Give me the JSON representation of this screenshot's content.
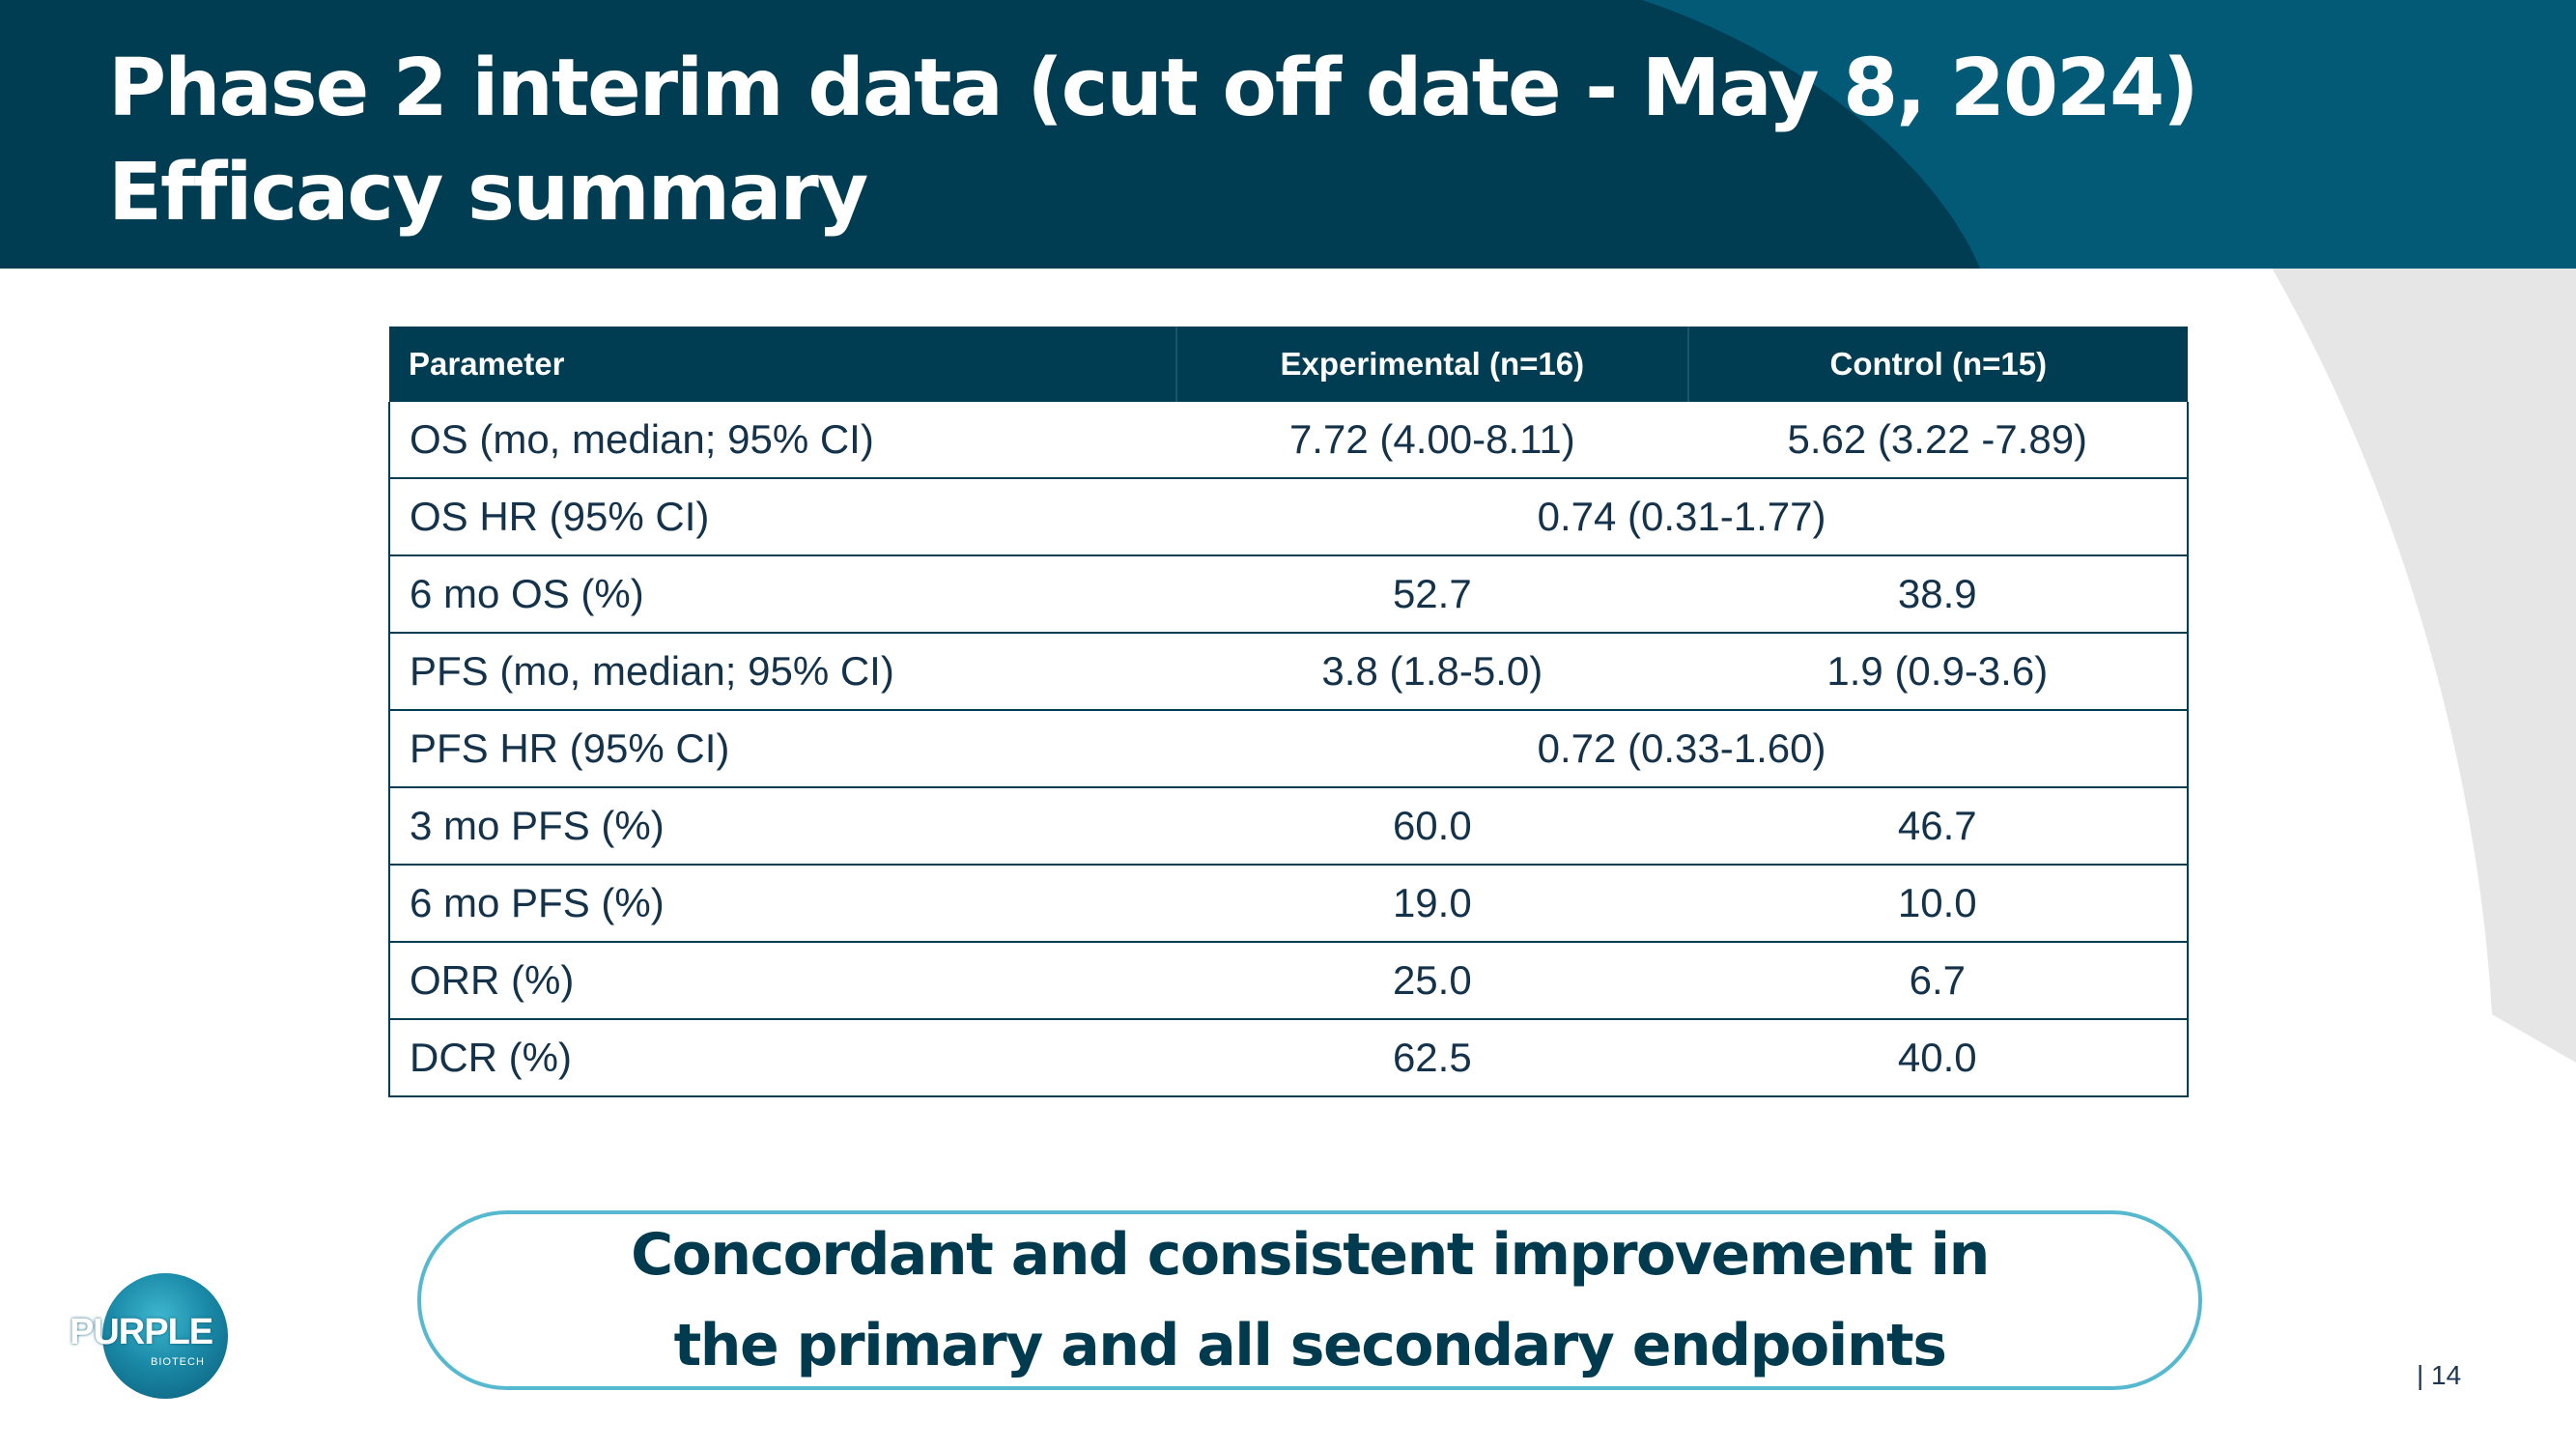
{
  "slide": {
    "title_line1": "Phase 2 interim data (cut off date - May 8, 2024)",
    "title_line2": "Efficacy summary",
    "page_number": "| 14"
  },
  "table": {
    "headers": [
      "Parameter",
      "Experimental (n=16)",
      "Control (n=15)"
    ],
    "rows": [
      {
        "parameter": "OS (mo, median; 95% CI)",
        "experimental": "7.72 (4.00-8.11)",
        "control": "5.62 (3.22 -7.89)"
      },
      {
        "parameter": "OS HR (95% CI)",
        "combined": "0.74 (0.31-1.77)"
      },
      {
        "parameter": "6 mo OS (%)",
        "experimental": "52.7",
        "control": "38.9"
      },
      {
        "parameter": "PFS (mo, median; 95% CI)",
        "experimental": "3.8 (1.8-5.0)",
        "control": "1.9 (0.9-3.6)"
      },
      {
        "parameter": "PFS HR (95% CI)",
        "combined": "0.72 (0.33-1.60)"
      },
      {
        "parameter": "3 mo PFS (%)",
        "experimental": "60.0",
        "control": "46.7"
      },
      {
        "parameter": "6 mo PFS (%)",
        "experimental": "19.0",
        "control": "10.0"
      },
      {
        "parameter": "ORR (%)",
        "experimental": "25.0",
        "control": "6.7"
      },
      {
        "parameter": "DCR (%)",
        "experimental": "62.5",
        "control": "40.0"
      }
    ]
  },
  "callout": {
    "line1": "Concordant and consistent improvement in",
    "line2": "the primary and all secondary endpoints"
  },
  "logo": {
    "wordmark": "PURPLE",
    "subtext": "BIOTECH",
    "icon": "purple-biotech-logo-icon"
  },
  "colors": {
    "header_dark": "#003d52",
    "header_light": "#025a76",
    "table_header": "#003d52",
    "text": "#14324a",
    "callout_border": "#57b9cf",
    "callout_text": "#003a4f",
    "swoosh_gray": "#e6e6e6"
  }
}
